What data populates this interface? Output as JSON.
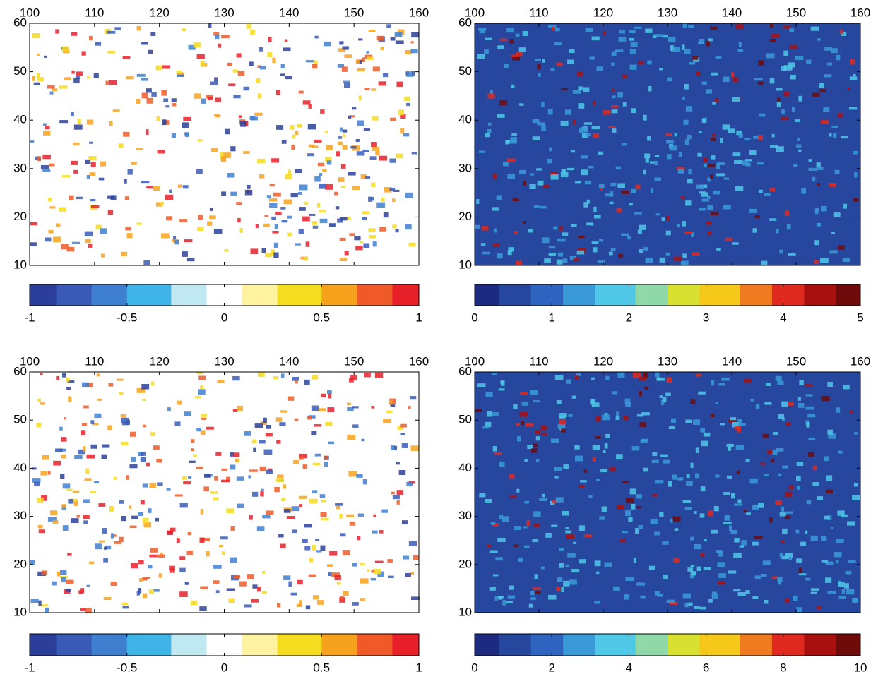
{
  "maps": [
    {
      "xlim": [
        100,
        160
      ],
      "xticks": [
        100,
        110,
        120,
        130,
        140,
        150,
        160
      ],
      "ylim": [
        10,
        60
      ],
      "yticks": [
        10,
        20,
        30,
        40,
        50,
        60
      ],
      "background": "#ffffff",
      "colorbar": {
        "lim": [
          -1,
          1
        ],
        "ticks": [
          -1,
          -0.5,
          0,
          0.5,
          1
        ],
        "colors": [
          "#2b3f9a",
          "#3a5ab8",
          "#3f7fd0",
          "#3fb4e6",
          "#bfe8f0",
          "#ffffff",
          "#fff2a0",
          "#f5dc1e",
          "#f7a21c",
          "#f05a28",
          "#e8202a"
        ]
      }
    },
    {
      "xlim": [
        100,
        160
      ],
      "xticks": [
        100,
        110,
        120,
        130,
        140,
        150,
        160
      ],
      "ylim": [
        10,
        60
      ],
      "yticks": [
        10,
        20,
        30,
        40,
        50,
        60
      ],
      "background": "#27479e",
      "colorbar": {
        "lim": [
          0,
          5
        ],
        "ticks": [
          0,
          1,
          2,
          3,
          4,
          5
        ],
        "colors": [
          "#1c2a80",
          "#27479e",
          "#2e63c0",
          "#3a9ad8",
          "#50c8e8",
          "#8fd8a8",
          "#d8e030",
          "#f5c81a",
          "#f07a20",
          "#e02a20",
          "#a81010",
          "#6e0a0a"
        ]
      }
    },
    {
      "xlim": [
        100,
        160
      ],
      "xticks": [
        100,
        110,
        120,
        130,
        140,
        150,
        160
      ],
      "ylim": [
        10,
        60
      ],
      "yticks": [
        10,
        20,
        30,
        40,
        50,
        60
      ],
      "background": "#ffffff",
      "colorbar": {
        "lim": [
          -1,
          1
        ],
        "ticks": [
          -1,
          -0.5,
          0,
          0.5,
          1
        ],
        "colors": [
          "#2b3f9a",
          "#3a5ab8",
          "#3f7fd0",
          "#3fb4e6",
          "#bfe8f0",
          "#ffffff",
          "#fff2a0",
          "#f5dc1e",
          "#f7a21c",
          "#f05a28",
          "#e8202a"
        ]
      }
    },
    {
      "xlim": [
        100,
        160
      ],
      "xticks": [
        100,
        110,
        120,
        130,
        140,
        150,
        160
      ],
      "ylim": [
        10,
        60
      ],
      "yticks": [
        10,
        20,
        30,
        40,
        50,
        60
      ],
      "background": "#27479e",
      "colorbar": {
        "lim": [
          0,
          10
        ],
        "ticks": [
          0,
          2,
          4,
          6,
          8,
          10
        ],
        "colors": [
          "#1c2a80",
          "#27479e",
          "#2e63c0",
          "#3a9ad8",
          "#50c8e8",
          "#8fd8a8",
          "#d8e030",
          "#f5c81a",
          "#f07a20",
          "#e02a20",
          "#a81010",
          "#6e0a0a"
        ]
      }
    }
  ]
}
